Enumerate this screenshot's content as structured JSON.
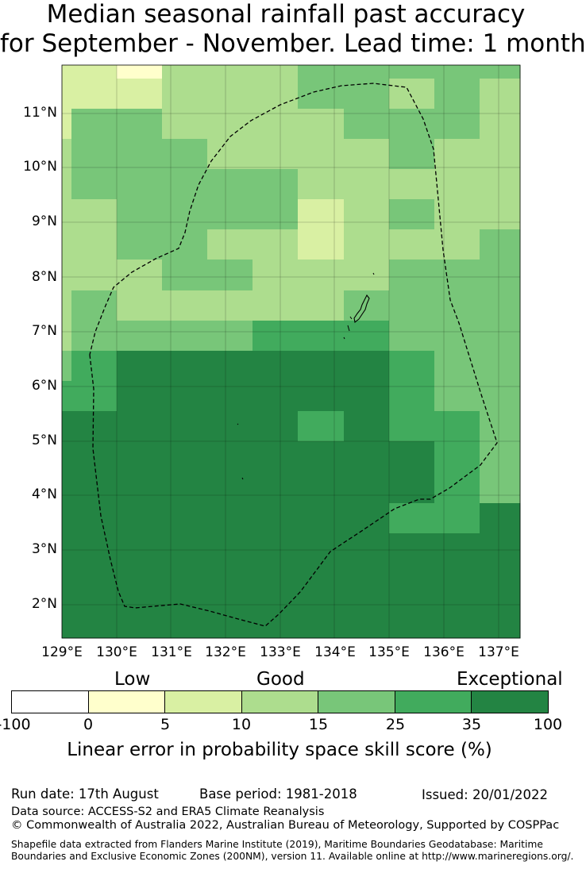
{
  "title": {
    "line1": "Median seasonal rainfall past accuracy",
    "line2": "for September - November. Lead time: 1 month"
  },
  "map": {
    "lat_labels": [
      "11°N",
      "10°N",
      "9°N",
      "8°N",
      "7°N",
      "6°N",
      "5°N",
      "4°N",
      "3°N",
      "2°N"
    ],
    "lon_labels": [
      "129°E",
      "130°E",
      "131°E",
      "132°E",
      "133°E",
      "134°E",
      "135°E",
      "136°E",
      "137°E"
    ],
    "lon_range": [
      129.0,
      137.4
    ],
    "lat_range": [
      1.4,
      11.9
    ],
    "grid_lines": true,
    "eez_boundary_style": "dashed black line",
    "skill_classes_note": "grid cells colored by skill class index 1-6 (0-5, 5-10, 10-15, 15-25, 25-35, 35-100)"
  },
  "colorbar": {
    "categories": {
      "low": "Low",
      "good": "Good",
      "exceptional": "Exceptional"
    },
    "ticks": [
      "-100",
      "0",
      "5",
      "10",
      "15",
      "25",
      "35",
      "100"
    ],
    "colors": [
      "#ffffff",
      "#ffffcc",
      "#d9f0a3",
      "#addd8e",
      "#78c679",
      "#41ab5d",
      "#238443"
    ],
    "label": "Linear error in probability space skill score (%)"
  },
  "footer": {
    "run_date": "Run date: 17th August",
    "base_period": "Base period: 1981-2018",
    "issued": "Issued: 20/01/2022",
    "data_source": "Data source: ACCESS-S2 and ERA5 Climate Reanalysis",
    "copyright": "© Commonwealth of Australia 2022, Australian Bureau of Meteorology, Supported by COSPPac",
    "shapefile_line1": "Shapefile data extracted from Flanders Marine Institute (2019), Maritime Boundaries Geodatabase: Maritime",
    "shapefile_line2": "Boundaries and Exclusive Economic Zones (200NM), version 11. Available online at http://www.marineregions.org/."
  }
}
